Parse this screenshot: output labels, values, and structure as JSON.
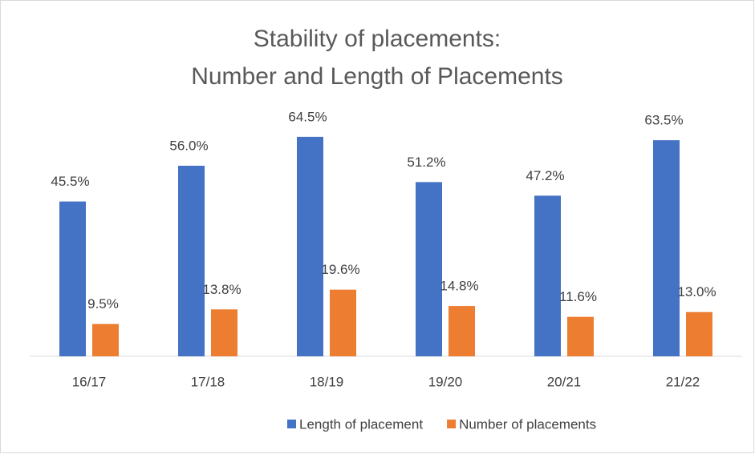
{
  "chart_data": {
    "type": "bar",
    "title": [
      "Stability of placements:",
      "Number and Length of Placements"
    ],
    "categories": [
      "16/17",
      "17/18",
      "18/19",
      "19/20",
      "20/21",
      "21/22"
    ],
    "series": [
      {
        "name": "Length of placement",
        "color": "#4472c4",
        "values": [
          45.5,
          56.0,
          64.5,
          51.2,
          47.2,
          63.5
        ],
        "value_labels": [
          "45.5%",
          "56.0%",
          "64.5%",
          "51.2%",
          "47.2%",
          "63.5%"
        ]
      },
      {
        "name": "Number of placements",
        "color": "#ed7d31",
        "values": [
          9.5,
          13.8,
          19.6,
          14.8,
          11.6,
          13.0
        ],
        "value_labels": [
          "9.5%",
          "13.8%",
          "19.6%",
          "14.8%",
          "11.6%",
          "13.0%"
        ]
      }
    ],
    "ylim": [
      0,
      70
    ],
    "legend": "bottom"
  }
}
